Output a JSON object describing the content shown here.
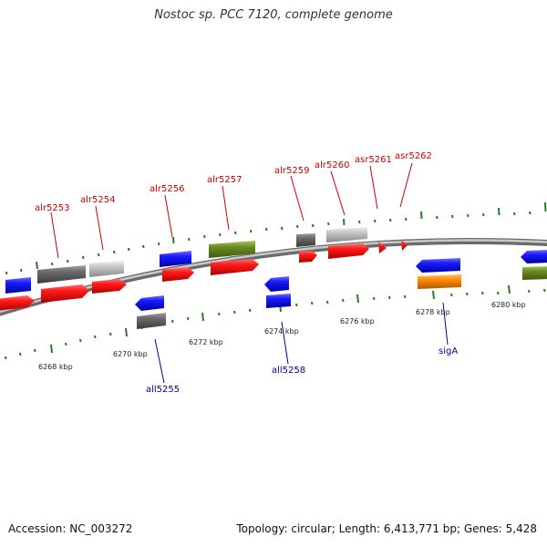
{
  "header": {
    "title": "Nostoc sp. PCC 7120, complete genome"
  },
  "footer": {
    "accession": "Accession: NC_003272",
    "summary": "Topology: circular; Length: 6,413,771 bp; Genes: 5,428"
  },
  "colors": {
    "forward_label": "#cc0000",
    "reverse_label": "#000099",
    "backbone": "#8c8c8c",
    "tick": "#2a7a2a",
    "red": "#ff1a1a",
    "blue": "#1a1aff",
    "dark_gray": "#6a6a6a",
    "light_gray": "#c4c4c4",
    "olive": "#6b8e23",
    "orange": "#ff8c00"
  },
  "scale_labels": [
    "6268 kbp",
    "6270 kbp",
    "6272 kbp",
    "6274 kbp",
    "6276 kbp",
    "6278 kbp",
    "6280 kbp"
  ],
  "gene_labels": {
    "forward": [
      "alr5253",
      "alr5254",
      "alr5256",
      "alr5257",
      "alr5259",
      "alr5260",
      "asr5261",
      "asr5262"
    ],
    "reverse": [
      "all5255",
      "all5258",
      "sigA"
    ]
  }
}
